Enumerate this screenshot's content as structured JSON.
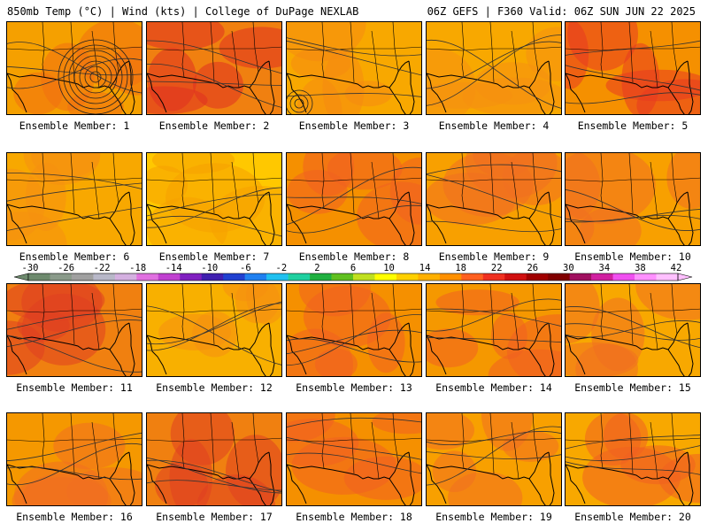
{
  "header": {
    "left": "850mb Temp (°C) | Wind (kts) | College of DuPage NEXLAB",
    "right": "06Z GEFS | F360 Valid: 06Z SUN JUN 22 2025"
  },
  "colorbar": {
    "labels": [
      "-30",
      "-26",
      "-22",
      "-18",
      "-14",
      "-10",
      "-6",
      "-2",
      "2",
      "6",
      "10",
      "14",
      "18",
      "22",
      "26",
      "30",
      "34",
      "38",
      "42"
    ],
    "colors": [
      "#6e8a6e",
      "#8a9a8a",
      "#a0a0a0",
      "#b8b8c8",
      "#d4b0e0",
      "#e070e0",
      "#c040d0",
      "#8020c0",
      "#4020b0",
      "#2040d0",
      "#2080f0",
      "#20c0f0",
      "#20d0a0",
      "#20b040",
      "#60c020",
      "#c0e020",
      "#ffff00",
      "#ffd000",
      "#ffb000",
      "#ff9000",
      "#ff6020",
      "#f03020",
      "#d01010",
      "#a00000",
      "#800000",
      "#a01060",
      "#d020a0",
      "#f050f0",
      "#ff90ff",
      "#ffc0ff"
    ]
  },
  "members": [
    {
      "label": "Ensemble Member: 1",
      "base": "#f5a000",
      "hot": "#f07010"
    },
    {
      "label": "Ensemble Member: 2",
      "base": "#f08010",
      "hot": "#e03020"
    },
    {
      "label": "Ensemble Member: 3",
      "base": "#f8a800",
      "hot": "#f58a10"
    },
    {
      "label": "Ensemble Member: 4",
      "base": "#f8a800",
      "hot": "#f59010"
    },
    {
      "label": "Ensemble Member: 5",
      "base": "#f59000",
      "hot": "#e83a20"
    },
    {
      "label": "Ensemble Member: 6",
      "base": "#f8a800",
      "hot": "#f59010"
    },
    {
      "label": "Ensemble Member: 7",
      "base": "#ffc800",
      "hot": "#f5a000"
    },
    {
      "label": "Ensemble Member: 8",
      "base": "#f59000",
      "hot": "#f06020"
    },
    {
      "label": "Ensemble Member: 9",
      "base": "#f8a000",
      "hot": "#f07020"
    },
    {
      "label": "Ensemble Member: 10",
      "base": "#f8a000",
      "hot": "#f07020"
    },
    {
      "label": "Ensemble Member: 11",
      "base": "#f08010",
      "hot": "#e04020"
    },
    {
      "label": "Ensemble Member: 12",
      "base": "#f8b000",
      "hot": "#f59010"
    },
    {
      "label": "Ensemble Member: 13",
      "base": "#f59000",
      "hot": "#f06020"
    },
    {
      "label": "Ensemble Member: 14",
      "base": "#f59800",
      "hot": "#f06020"
    },
    {
      "label": "Ensemble Member: 15",
      "base": "#f8a800",
      "hot": "#f07020"
    },
    {
      "label": "Ensemble Member: 16",
      "base": "#f59800",
      "hot": "#f07020"
    },
    {
      "label": "Ensemble Member: 17",
      "base": "#f08010",
      "hot": "#e04020"
    },
    {
      "label": "Ensemble Member: 18",
      "base": "#f59000",
      "hot": "#f06020"
    },
    {
      "label": "Ensemble Member: 19",
      "base": "#f8a000",
      "hot": "#f07020"
    },
    {
      "label": "Ensemble Member: 20",
      "base": "#f8a800",
      "hot": "#f06020"
    }
  ]
}
